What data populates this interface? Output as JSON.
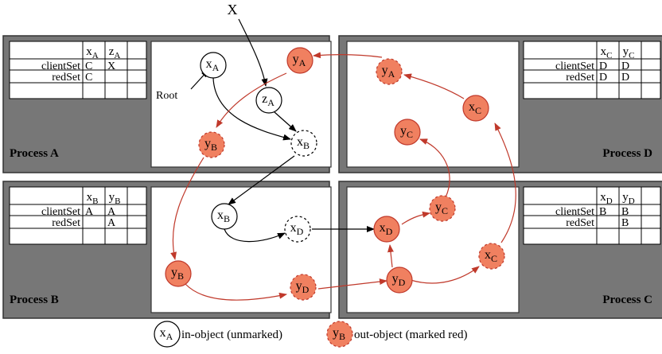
{
  "top_label": "X",
  "root_label": "Root",
  "processes": [
    {
      "label": "Process A",
      "table": {
        "headers": [
          [
            "x",
            "A"
          ],
          [
            "z",
            "A"
          ]
        ],
        "rows": [
          {
            "label": "clientSet",
            "cells": [
              "C",
              "X"
            ]
          },
          {
            "label": "redSet",
            "cells": [
              "C",
              ""
            ]
          }
        ]
      }
    },
    {
      "label": "Process B",
      "table": {
        "headers": [
          [
            "x",
            "B"
          ],
          [
            "y",
            "B"
          ]
        ],
        "rows": [
          {
            "label": "clientSet",
            "cells": [
              "A",
              "A"
            ]
          },
          {
            "label": "redSet",
            "cells": [
              "",
              "A"
            ]
          }
        ]
      }
    },
    {
      "label": "Process C",
      "table": {
        "headers": [
          [
            "x",
            "D"
          ],
          [
            "y",
            "D"
          ]
        ],
        "rows": [
          {
            "label": "clientSet",
            "cells": [
              "B",
              "B"
            ]
          },
          {
            "label": "redSet",
            "cells": [
              "",
              "B"
            ]
          }
        ]
      }
    },
    {
      "label": "Process D",
      "table": {
        "headers": [
          [
            "x",
            "C"
          ],
          [
            "y",
            "C"
          ]
        ],
        "rows": [
          {
            "label": "clientSet",
            "cells": [
              "D",
              "D"
            ]
          },
          {
            "label": "redSet",
            "cells": [
              "D",
              "D"
            ]
          }
        ]
      }
    }
  ],
  "nodes": [
    {
      "id": "A_xA",
      "base": "x",
      "sub": "A",
      "type": "in"
    },
    {
      "id": "A_yA",
      "base": "y",
      "sub": "A",
      "type": "out-solid"
    },
    {
      "id": "A_zA",
      "base": "z",
      "sub": "A",
      "type": "in"
    },
    {
      "id": "A_xB",
      "base": "x",
      "sub": "B",
      "type": "in-dashed"
    },
    {
      "id": "A_yB",
      "base": "y",
      "sub": "B",
      "type": "out-dashed"
    },
    {
      "id": "D_yA",
      "base": "y",
      "sub": "A",
      "type": "out-dashed"
    },
    {
      "id": "D_xC",
      "base": "x",
      "sub": "C",
      "type": "out-solid"
    },
    {
      "id": "D_yC",
      "base": "y",
      "sub": "C",
      "type": "out-solid"
    },
    {
      "id": "B_xB",
      "base": "x",
      "sub": "B",
      "type": "in"
    },
    {
      "id": "B_xD",
      "base": "x",
      "sub": "D",
      "type": "in-dashed"
    },
    {
      "id": "B_yB",
      "base": "y",
      "sub": "B",
      "type": "out-solid"
    },
    {
      "id": "B_yD",
      "base": "y",
      "sub": "D",
      "type": "out-dashed"
    },
    {
      "id": "C_xD",
      "base": "x",
      "sub": "D",
      "type": "out-solid"
    },
    {
      "id": "C_yC",
      "base": "y",
      "sub": "C",
      "type": "out-dashed"
    },
    {
      "id": "C_yD",
      "base": "y",
      "sub": "D",
      "type": "out-solid"
    },
    {
      "id": "C_xC",
      "base": "x",
      "sub": "C",
      "type": "out-dashed"
    }
  ],
  "legend": [
    {
      "base": "x",
      "sub": "A",
      "type": "in",
      "text": "in-object (unmarked)"
    },
    {
      "base": "y",
      "sub": "B",
      "type": "out-dashed",
      "text": "out-object (marked red)"
    }
  ],
  "colors": {
    "panel": "#777777",
    "red_fill": "#f08060",
    "red_edge": "#c0392b",
    "black": "#000000"
  }
}
